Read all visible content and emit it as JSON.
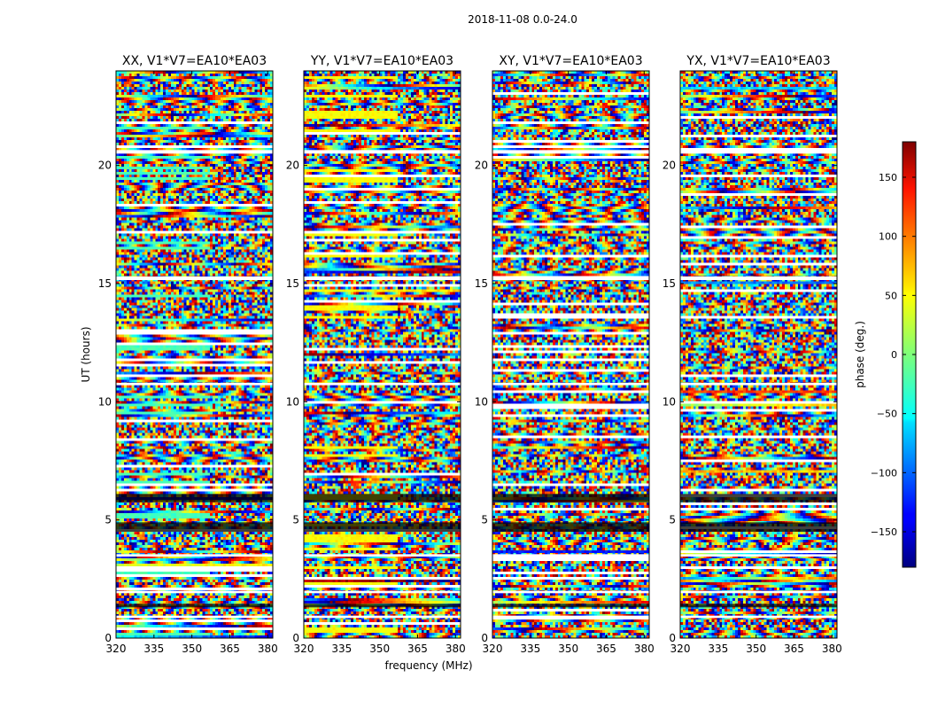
{
  "figure": {
    "suptitle": "2018-11-08 0.0-24.0",
    "xlabel": "frequency (MHz)",
    "ylabel": "UT (hours)"
  },
  "chart_data": {
    "type": "heatmap",
    "x_range": [
      320,
      382
    ],
    "x_ticks": [
      320,
      335,
      350,
      365,
      380
    ],
    "y_range": [
      0,
      24
    ],
    "y_ticks": [
      0,
      5,
      10,
      15,
      20
    ],
    "panels": [
      {
        "title": "XX, V1*V7=EA10*EA03"
      },
      {
        "title": "YY, V1*V7=EA10*EA03"
      },
      {
        "title": "XY, V1*V7=EA10*EA03"
      },
      {
        "title": "YX, V1*V7=EA10*EA03"
      }
    ],
    "flagged_gaps_hours": [
      [
        20.5,
        20.65
      ],
      [
        15.15,
        15.3
      ],
      [
        10.7,
        10.8
      ],
      [
        3.45,
        3.55
      ],
      [
        1.9,
        2.0
      ],
      [
        0.85,
        0.95
      ]
    ],
    "dark_bands_hours": [
      [
        5.75,
        6.1
      ],
      [
        4.5,
        4.9
      ],
      [
        1.3,
        1.45
      ]
    ],
    "colorbar": {
      "label": "phase (deg.)",
      "range": [
        -180,
        180
      ],
      "ticks": [
        -150,
        -100,
        -50,
        0,
        50,
        100,
        150
      ],
      "tick_labels": [
        "−150",
        "−100",
        "−50",
        "0",
        "50",
        "100",
        "150"
      ]
    }
  }
}
